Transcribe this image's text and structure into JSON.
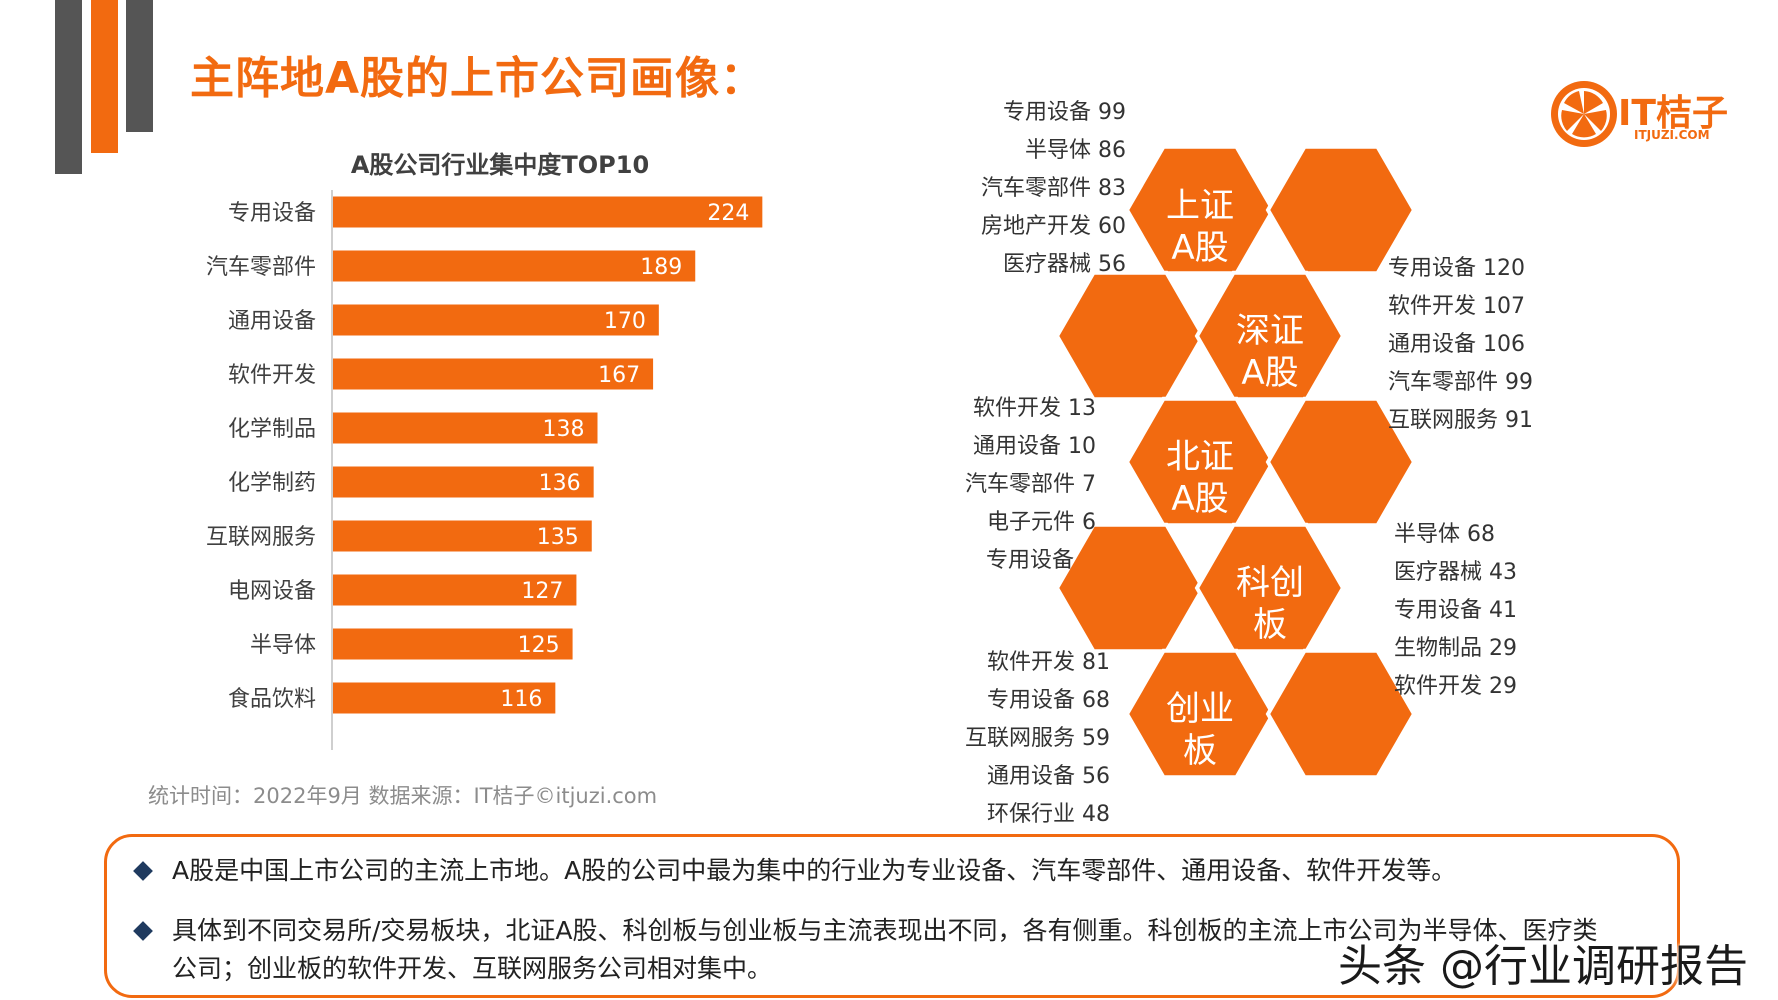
{
  "title": "主阵地A股的上市公司画像：",
  "logo": {
    "name": "IT桔子",
    "sub": "ITJUZI.COM",
    "color": "#F26A10"
  },
  "colors": {
    "accent": "#F26A10",
    "decor_gray": "#555555"
  },
  "chart_data": {
    "type": "bar",
    "orientation": "horizontal",
    "title": "A股公司行业集中度TOP10",
    "categories": [
      "专用设备",
      "汽车零部件",
      "通用设备",
      "软件开发",
      "化学制品",
      "化学制药",
      "互联网服务",
      "电网设备",
      "半导体",
      "食品饮料"
    ],
    "values": [
      224,
      189,
      170,
      167,
      138,
      136,
      135,
      127,
      125,
      116
    ],
    "xlim": [
      0,
      240
    ],
    "grid": false,
    "bar_color": "#F26A10"
  },
  "source_note": "统计时间：2022年9月  数据来源：IT桔子©itjuzi.com",
  "exchanges": [
    {
      "label_line1": "上证",
      "label_line2": "A股",
      "items": [
        {
          "name": "专用设备",
          "value": "99"
        },
        {
          "name": "半导体",
          "value": "86"
        },
        {
          "name": "汽车零部件",
          "value": "83"
        },
        {
          "name": "房地产开发",
          "value": "60"
        },
        {
          "name": "医疗器械",
          "value": "56"
        }
      ]
    },
    {
      "label_line1": "深证",
      "label_line2": "A股",
      "items": [
        {
          "name": "专用设备",
          "value": "120"
        },
        {
          "name": "软件开发",
          "value": "107"
        },
        {
          "name": "通用设备",
          "value": "106"
        },
        {
          "name": "汽车零部件",
          "value": "99"
        },
        {
          "name": "互联网服务",
          "value": "91"
        }
      ]
    },
    {
      "label_line1": "北证",
      "label_line2": "A股",
      "items": [
        {
          "name": "软件开发",
          "value": "13"
        },
        {
          "name": "通用设备",
          "value": "10"
        },
        {
          "name": "汽车零部件",
          "value": "7"
        },
        {
          "name": "电子元件",
          "value": "6"
        },
        {
          "name": "专用设备",
          "value": ""
        }
      ]
    },
    {
      "label_line1": "科创",
      "label_line2": "板",
      "items": [
        {
          "name": "半导体",
          "value": "68"
        },
        {
          "name": "医疗器械",
          "value": "43"
        },
        {
          "name": "专用设备",
          "value": "41"
        },
        {
          "name": "生物制品",
          "value": "29"
        },
        {
          "name": "软件开发",
          "value": "29"
        }
      ]
    },
    {
      "label_line1": "创业",
      "label_line2": "板",
      "items": [
        {
          "name": "软件开发",
          "value": "81"
        },
        {
          "name": "专用设备",
          "value": "68"
        },
        {
          "name": "互联网服务",
          "value": "59"
        },
        {
          "name": "通用设备",
          "value": "56"
        },
        {
          "name": "环保行业",
          "value": "48"
        }
      ]
    }
  ],
  "summary": [
    "A股是中国上市公司的主流上市地。A股的公司中最为集中的行业为专业设备、汽车零部件、通用设备、软件开发等。",
    "具体到不同交易所/交易板块，北证A股、科创板与创业板与主流表现出不同，各有侧重。科创板的主流上市公司为半导体、医疗类",
    "公司；创业板的软件开发、互联网服务公司相对集中。"
  ],
  "watermark": "头条 @行业调研报告"
}
